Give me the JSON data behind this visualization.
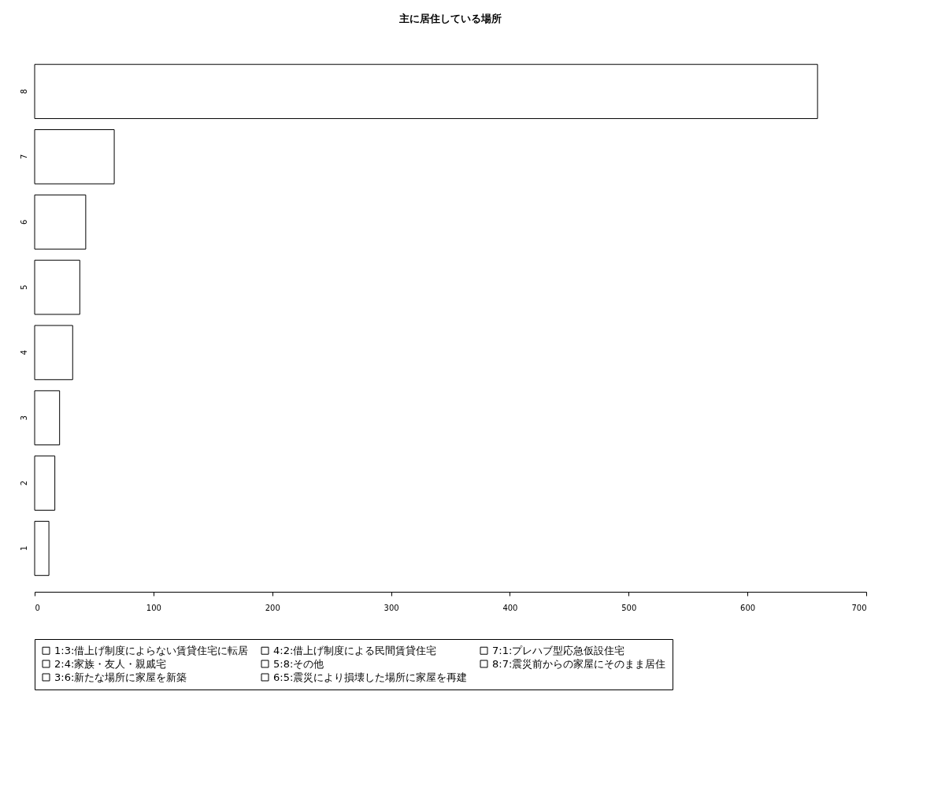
{
  "chart_data": {
    "type": "bar",
    "orientation": "horizontal",
    "title": "主に居住している場所",
    "categories": [
      "8",
      "7",
      "6",
      "5",
      "4",
      "3",
      "2",
      "1"
    ],
    "series": [
      {
        "name": "1:3:借上げ制度によらない賃貸住宅に転居",
        "color": "#ffffff",
        "values": [
          null,
          null,
          null,
          null,
          null,
          null,
          null,
          12
        ]
      },
      {
        "name": "2:4:家族・友人・親戚宅",
        "color": "#ffffff",
        "values": [
          null,
          null,
          null,
          null,
          null,
          null,
          17,
          null
        ]
      },
      {
        "name": "3:6:新たな場所に家屋を新築",
        "color": "#ffffff",
        "values": [
          null,
          null,
          null,
          null,
          null,
          21,
          null,
          null
        ]
      },
      {
        "name": "4:2:借上げ制度による民間賃貸住宅",
        "color": "#ffffff",
        "values": [
          null,
          null,
          null,
          null,
          32,
          null,
          null,
          null
        ]
      },
      {
        "name": "5:8:その他",
        "color": "#ffffff",
        "values": [
          null,
          null,
          null,
          38,
          null,
          null,
          null,
          null
        ]
      },
      {
        "name": "6:5:震災により損壊した場所に家屋を再建",
        "color": "#ffffff",
        "values": [
          null,
          null,
          43,
          null,
          null,
          null,
          null,
          null
        ]
      },
      {
        "name": "7:1:プレハブ型応急仮設住宅",
        "color": "#ffffff",
        "values": [
          null,
          67,
          null,
          null,
          null,
          null,
          null,
          null
        ]
      },
      {
        "name": "8:7:震災前からの家屋にそのまま居住",
        "color": "#ffffff",
        "values": [
          659,
          null,
          null,
          null,
          null,
          null,
          null,
          null
        ]
      }
    ],
    "xlim": [
      0,
      700
    ],
    "xticks": [
      0,
      100,
      200,
      300,
      400,
      500,
      600,
      700
    ],
    "grid": false,
    "legend": "bottom left"
  }
}
